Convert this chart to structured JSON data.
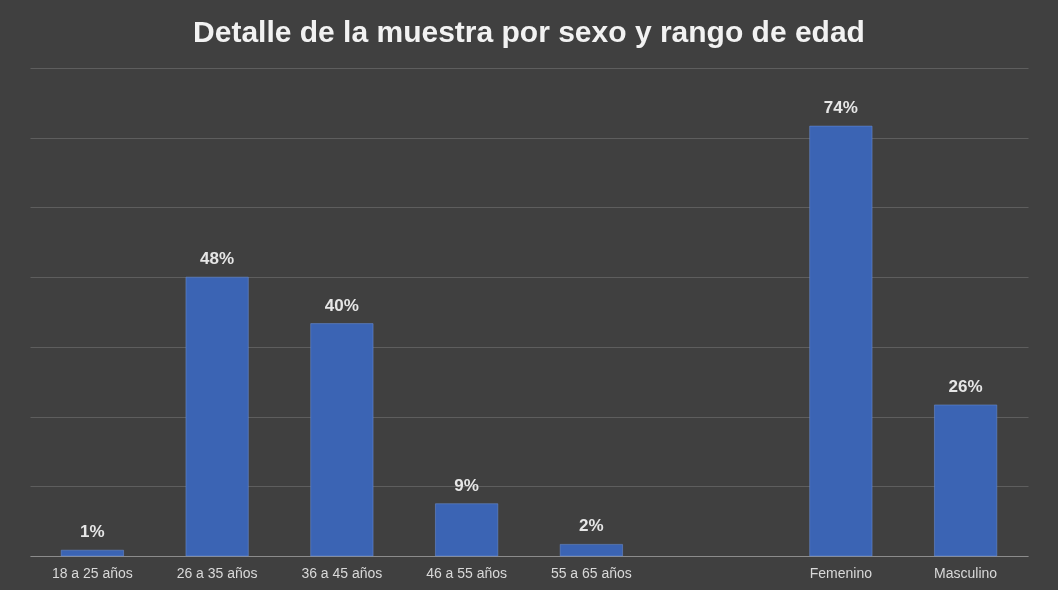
{
  "chart_data": {
    "type": "bar",
    "title": "Detalle de la muestra por sexo y rango de edad",
    "categories": [
      "18 a 25 años",
      "26 a 35 años",
      "36 a 45 años",
      "46 a 55 años",
      "55 a 65 años",
      null,
      "Femenino",
      "Masculino"
    ],
    "values": [
      1,
      48,
      40,
      9,
      2,
      null,
      74,
      26
    ],
    "value_labels": [
      "1%",
      "48%",
      "40%",
      "9%",
      "2%",
      null,
      "74%",
      "26%"
    ],
    "color": "#3b64b4",
    "ylim": [
      0,
      84
    ],
    "yticks": [
      {
        "value": 0,
        "label": null
      },
      {
        "value": 12,
        "label": null
      },
      {
        "value": 24,
        "label": null
      },
      {
        "value": 36,
        "label": null
      },
      {
        "value": 48,
        "label": null
      },
      {
        "value": 60,
        "label": null
      },
      {
        "value": 72,
        "label": null
      },
      {
        "value": 84,
        "label": null
      }
    ],
    "grid": "y",
    "tick_labels": "x"
  }
}
